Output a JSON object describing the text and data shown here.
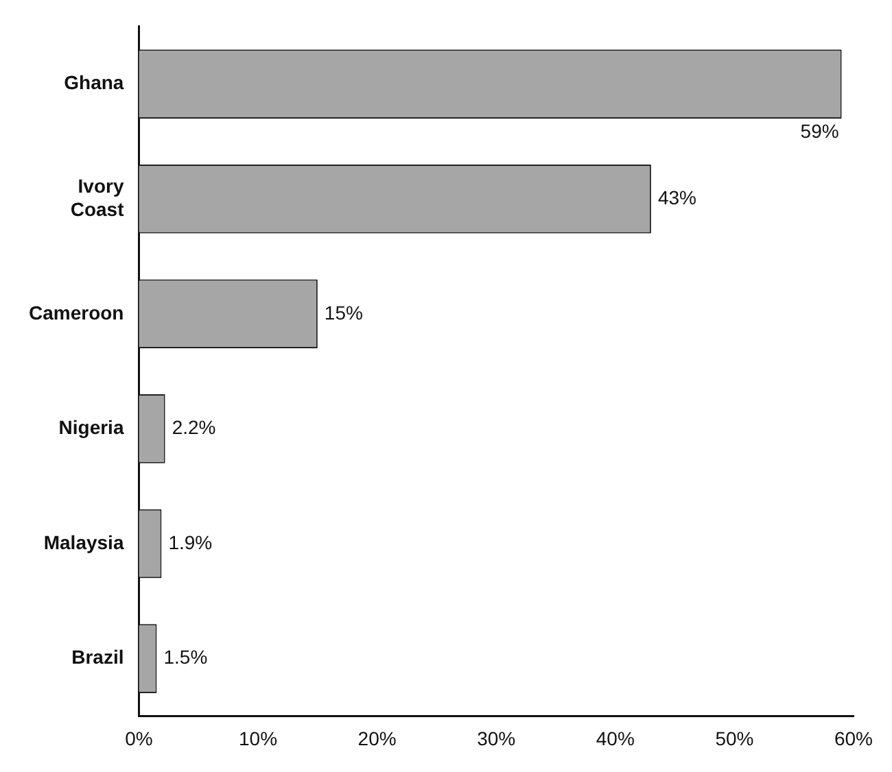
{
  "chart_data": {
    "type": "bar",
    "orientation": "horizontal",
    "categories": [
      "Ghana",
      "Ivory Coast",
      "Cameroon",
      "Nigeria",
      "Malaysia",
      "Brazil"
    ],
    "values": [
      59,
      43,
      15,
      2.2,
      1.9,
      1.5
    ],
    "value_labels": [
      "59%",
      "43%",
      "15%",
      "2.2%",
      "1.9%",
      "1.5%"
    ],
    "color": "#a6a6a6",
    "xlim": [
      0,
      60
    ],
    "xticks": [
      {
        "value": 0,
        "label": "0%"
      },
      {
        "value": 10,
        "label": "10%"
      },
      {
        "value": 20,
        "label": "20%"
      },
      {
        "value": 30,
        "label": "30%"
      },
      {
        "value": 40,
        "label": "40%"
      },
      {
        "value": 50,
        "label": "50%"
      },
      {
        "value": 60,
        "label": "60%"
      }
    ],
    "grid": false,
    "legend": false
  }
}
